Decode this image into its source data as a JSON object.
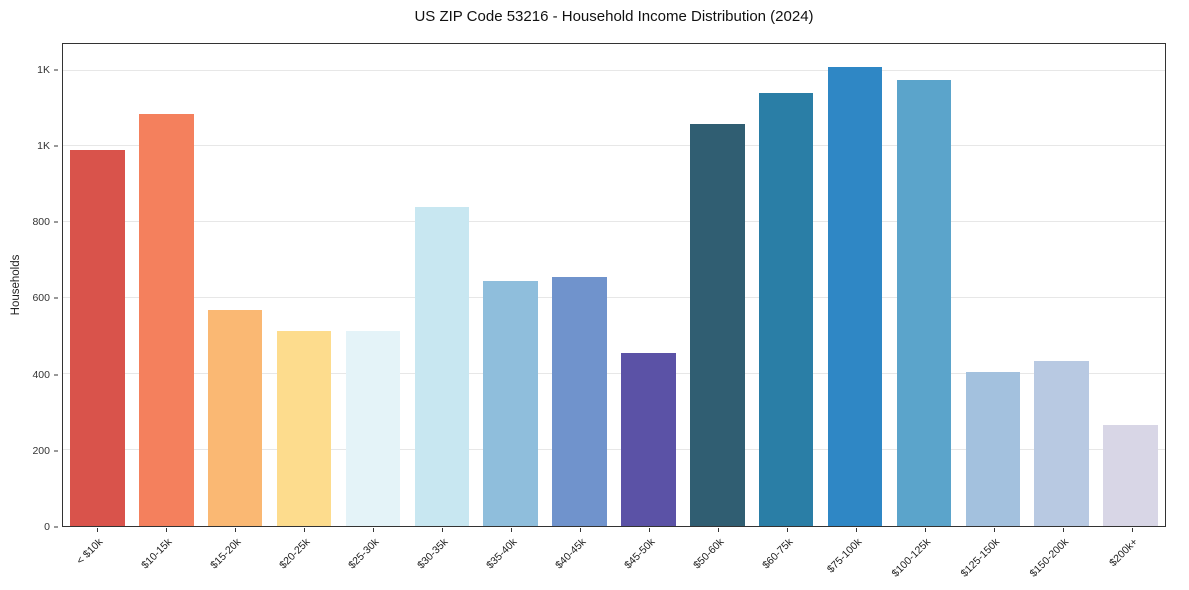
{
  "chart_data": {
    "type": "bar",
    "title": "US ZIP Code 53216 - Household Income Distribution (2024)",
    "xlabel": "",
    "ylabel": "Households",
    "ylim": [
      0,
      1270
    ],
    "grid": true,
    "legend": "none",
    "categories": [
      "< $10k",
      "$10-15k",
      "$15-20k",
      "$20-25k",
      "$25-30k",
      "$30-35k",
      "$35-40k",
      "$40-45k",
      "$45-50k",
      "$50-60k",
      "$60-75k",
      "$75-100k",
      "$100-125k",
      "$125-150k",
      "$150-200k",
      "$200k+"
    ],
    "values": [
      990,
      1085,
      570,
      515,
      515,
      840,
      645,
      655,
      455,
      1060,
      1140,
      1210,
      1175,
      405,
      435,
      265
    ],
    "bar_colors": [
      "#d9534b",
      "#f4805d",
      "#fab873",
      "#fddc8d",
      "#e4f3f8",
      "#c8e7f1",
      "#8fbedc",
      "#7093cc",
      "#5b52a6",
      "#305e72",
      "#2a7ea6",
      "#2f87c5",
      "#5ba4cb",
      "#a3c1de",
      "#b8c9e2",
      "#d8d6e6"
    ],
    "y_ticks": [
      {
        "value": 0,
        "label": "0"
      },
      {
        "value": 200,
        "label": "200"
      },
      {
        "value": 400,
        "label": "400"
      },
      {
        "value": 600,
        "label": "600"
      },
      {
        "value": 800,
        "label": "800"
      },
      {
        "value": 1000,
        "label": "1K"
      },
      {
        "value": 1200,
        "label": "1K"
      }
    ]
  }
}
